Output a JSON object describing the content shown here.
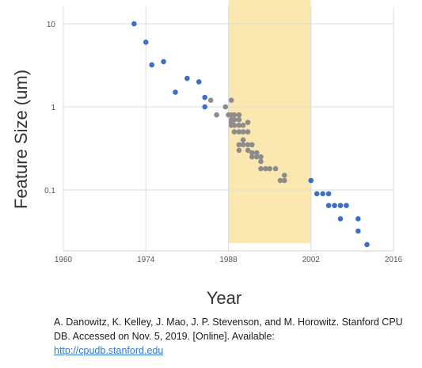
{
  "chart_data": {
    "type": "scatter",
    "xlabel": "Year",
    "ylabel": "Feature Size (um)",
    "y_scale": "log",
    "xlim": [
      1960,
      2016
    ],
    "ylim": [
      0.02,
      12
    ],
    "x_ticks": [
      "1960",
      "1974",
      "1988",
      "2002",
      "2016"
    ],
    "y_ticks": [
      "10",
      "1",
      "0.1"
    ],
    "grid": true,
    "highlight_band": {
      "x": [
        1988,
        2002
      ],
      "color": "#fbe8b0"
    },
    "series": [
      {
        "color": "#3d6fc6",
        "points": [
          [
            1972,
            10
          ],
          [
            1974,
            6
          ],
          [
            1975,
            3.2
          ],
          [
            1977,
            3.5
          ],
          [
            1979,
            1.5
          ],
          [
            1981,
            2.2
          ],
          [
            1983,
            2
          ],
          [
            1984,
            1.3
          ],
          [
            1984,
            1.0
          ],
          [
            2002,
            0.13
          ],
          [
            2003,
            0.09
          ],
          [
            2004,
            0.09
          ],
          [
            2005,
            0.09
          ],
          [
            2005,
            0.065
          ],
          [
            2006,
            0.065
          ],
          [
            2007,
            0.065
          ],
          [
            2008,
            0.065
          ],
          [
            2007,
            0.045
          ],
          [
            2010,
            0.045
          ],
          [
            2010,
            0.032
          ],
          [
            2011.5,
            0.022
          ]
        ]
      },
      {
        "color": "#8c8c8c",
        "points": [
          [
            1985,
            1.2
          ],
          [
            1986,
            0.8
          ],
          [
            1987.5,
            1.0
          ],
          [
            1988,
            0.8
          ],
          [
            1988.5,
            1.2
          ],
          [
            1988.5,
            0.8
          ],
          [
            1988.5,
            0.7
          ],
          [
            1988.5,
            0.65
          ],
          [
            1988.5,
            0.6
          ],
          [
            1989,
            0.8
          ],
          [
            1989,
            0.7
          ],
          [
            1989,
            0.6
          ],
          [
            1989,
            0.5
          ],
          [
            1989.8,
            0.8
          ],
          [
            1989.8,
            0.7
          ],
          [
            1989.8,
            0.6
          ],
          [
            1989.8,
            0.5
          ],
          [
            1989.8,
            0.35
          ],
          [
            1989.8,
            0.3
          ],
          [
            1990.5,
            0.6
          ],
          [
            1990.5,
            0.5
          ],
          [
            1990.5,
            0.4
          ],
          [
            1990.5,
            0.35
          ],
          [
            1991.3,
            0.65
          ],
          [
            1991.3,
            0.5
          ],
          [
            1991.3,
            0.35
          ],
          [
            1991.3,
            0.3
          ],
          [
            1992,
            0.35
          ],
          [
            1992,
            0.28
          ],
          [
            1992,
            0.25
          ],
          [
            1992.8,
            0.28
          ],
          [
            1992.8,
            0.25
          ],
          [
            1993.5,
            0.25
          ],
          [
            1993.5,
            0.22
          ],
          [
            1993.5,
            0.18
          ],
          [
            1994.3,
            0.18
          ],
          [
            1995,
            0.18
          ],
          [
            1996,
            0.18
          ],
          [
            1996.8,
            0.13
          ],
          [
            1997.5,
            0.13
          ],
          [
            1997.5,
            0.15
          ]
        ]
      }
    ]
  },
  "citation": {
    "text": "A. Danowitz, K. Kelley, J. Mao, J. P. Stevenson, and M. Horowitz. Stanford CPU DB. Accessed on  Nov. 5, 2019. [Online]. Available:",
    "link_text": "http://cpudb.stanford.edu"
  }
}
